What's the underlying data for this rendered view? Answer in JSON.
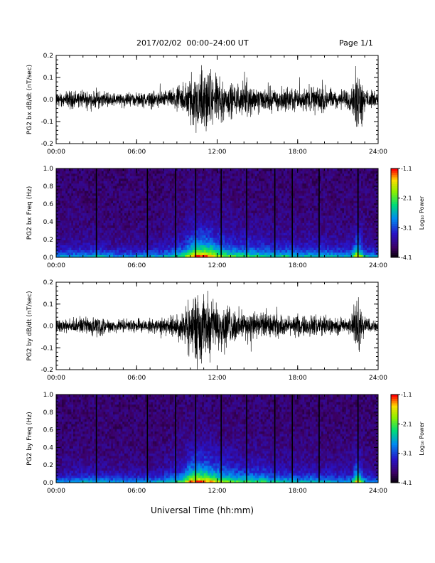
{
  "header": {
    "title": "2017/02/02  00:00–24:00 UT",
    "page": "Page 1/1"
  },
  "footer": {
    "xlabel": "Universal Time (hh:mm)"
  },
  "chart_data": [
    {
      "type": "line",
      "ylabel": "PG2 bx dB/dt (nT/sec)",
      "xlabel": "",
      "x_ticks": [
        "00:00",
        "06:00",
        "12:00",
        "18:00",
        "24:00"
      ],
      "x_range_hours": [
        0,
        24
      ],
      "ylim": [
        -0.2,
        0.2
      ],
      "y_ticks": [
        "-0.2",
        "-0.1",
        "0.0",
        "0.1",
        "0.2"
      ],
      "envelope": {
        "hours": [
          0,
          1,
          2,
          3,
          4,
          5,
          6,
          7,
          8,
          9,
          9.5,
          10,
          10.5,
          11,
          11.5,
          12,
          12.5,
          13,
          14,
          15,
          16,
          17,
          18,
          19,
          20,
          21,
          22,
          22.4,
          22.7,
          23,
          24
        ],
        "amplitude": [
          0.04,
          0.05,
          0.05,
          0.06,
          0.04,
          0.04,
          0.04,
          0.05,
          0.05,
          0.07,
          0.09,
          0.16,
          0.2,
          0.2,
          0.18,
          0.14,
          0.12,
          0.1,
          0.09,
          0.08,
          0.07,
          0.07,
          0.06,
          0.08,
          0.08,
          0.06,
          0.06,
          0.2,
          0.16,
          0.06,
          0.04
        ]
      }
    },
    {
      "type": "heatmap",
      "ylabel": "PG2 bx Freq (Hz)",
      "x_ticks": [
        "00:00",
        "06:00",
        "12:00",
        "18:00",
        "24:00"
      ],
      "x_range_hours": [
        0,
        24
      ],
      "ylim": [
        0.0,
        1.0
      ],
      "y_ticks": [
        "0.0",
        "0.2",
        "0.4",
        "0.6",
        "0.8",
        "1.0"
      ],
      "colorbar": {
        "label": "Log₁₀ Power",
        "ticks": [
          "-1.1",
          "-2.1",
          "-3.1",
          "-4.1"
        ],
        "range": [
          -4.1,
          -1.1
        ]
      },
      "vertical_stripes_hours": [
        3.0,
        6.8,
        8.9,
        10.4,
        12.3,
        14.2,
        16.3,
        17.6,
        19.6,
        22.5
      ]
    },
    {
      "type": "line",
      "ylabel": "PG2 by dB/dt (nT/sec)",
      "xlabel": "",
      "x_ticks": [
        "00:00",
        "06:00",
        "12:00",
        "18:00",
        "24:00"
      ],
      "x_range_hours": [
        0,
        24
      ],
      "ylim": [
        -0.2,
        0.2
      ],
      "y_ticks": [
        "-0.2",
        "-0.1",
        "0.0",
        "0.1",
        "0.2"
      ],
      "envelope": {
        "hours": [
          0,
          1,
          2,
          3,
          4,
          5,
          6,
          7,
          8,
          9,
          9.5,
          10,
          10.5,
          11,
          11.5,
          12,
          12.5,
          13,
          14,
          15,
          16,
          17,
          18,
          19,
          20,
          21,
          22,
          22.4,
          22.7,
          23,
          24
        ],
        "amplitude": [
          0.04,
          0.04,
          0.05,
          0.06,
          0.04,
          0.04,
          0.04,
          0.04,
          0.05,
          0.07,
          0.1,
          0.18,
          0.2,
          0.2,
          0.17,
          0.14,
          0.13,
          0.11,
          0.09,
          0.09,
          0.07,
          0.06,
          0.06,
          0.07,
          0.06,
          0.05,
          0.05,
          0.2,
          0.15,
          0.05,
          0.03
        ]
      }
    },
    {
      "type": "heatmap",
      "ylabel": "PG2 by Freq (Hz)",
      "x_ticks": [
        "00:00",
        "06:00",
        "12:00",
        "18:00",
        "24:00"
      ],
      "x_range_hours": [
        0,
        24
      ],
      "ylim": [
        0.0,
        1.0
      ],
      "y_ticks": [
        "0.0",
        "0.2",
        "0.4",
        "0.6",
        "0.8",
        "1.0"
      ],
      "colorbar": {
        "label": "Log₁₀ Power",
        "ticks": [
          "-1.1",
          "-2.1",
          "-3.1",
          "-4.1"
        ],
        "range": [
          -4.1,
          -1.1
        ]
      },
      "vertical_stripes_hours": [
        3.0,
        6.8,
        8.9,
        10.4,
        12.3,
        14.2,
        16.3,
        17.6,
        19.6,
        22.5
      ]
    }
  ]
}
